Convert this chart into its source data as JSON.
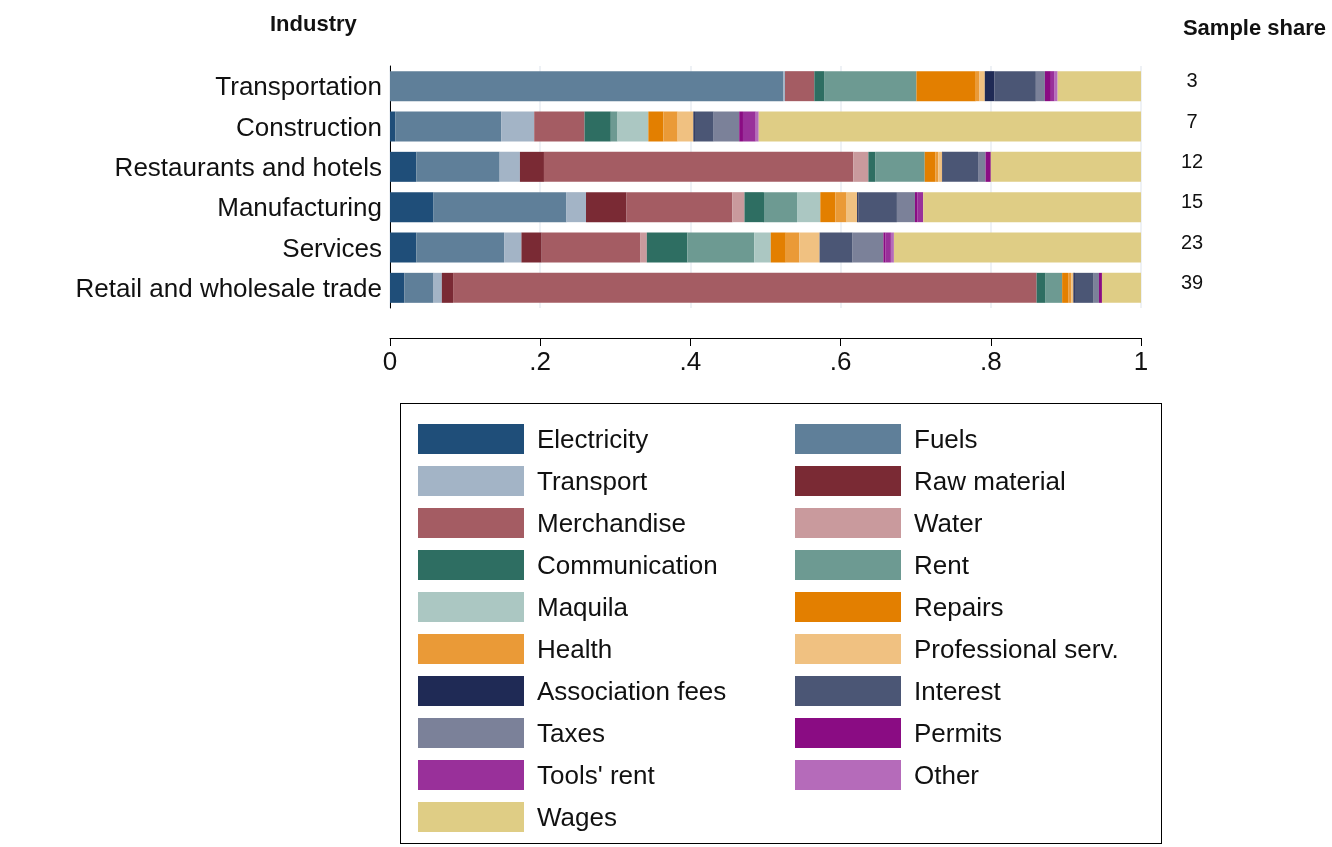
{
  "chart_data": {
    "type": "bar",
    "orientation": "horizontal",
    "stacked": true,
    "ylabel": "Industry",
    "y2label": "Sample share",
    "categories": [
      "Transportation",
      "Construction",
      "Restaurants and hotels",
      "Manufacturing",
      "Services",
      "Retail and wholesale trade"
    ],
    "xlim": [
      0,
      1
    ],
    "xticks": [
      0,
      {
        "value": 0.2,
        "label": ".2"
      },
      {
        "value": 0.4,
        "label": ".4"
      },
      {
        "value": 0.6,
        "label": ".6"
      },
      {
        "value": 0.8,
        "label": ".8"
      },
      1
    ],
    "grid": "x",
    "legend": "bottom",
    "series": [
      {
        "name": "Electricity",
        "color": "#1f4e79",
        "values": [
          0,
          0.007,
          0.035,
          0.058,
          0.035,
          0.019
        ]
      },
      {
        "name": "Fuels",
        "color": "#5f7f99",
        "values": [
          0.524,
          0.141,
          0.111,
          0.177,
          0.117,
          0.039
        ]
      },
      {
        "name": "Transport",
        "color": "#a3b4c6",
        "values": [
          0.002,
          0.044,
          0.027,
          0.026,
          0.023,
          0.011
        ]
      },
      {
        "name": "Raw material",
        "color": "#7a2a34",
        "values": [
          0,
          0,
          0.032,
          0.054,
          0.027,
          0.015
        ]
      },
      {
        "name": "Merchandise",
        "color": "#a45c63",
        "values": [
          0.039,
          0.067,
          0.412,
          0.141,
          0.131,
          0.777
        ]
      },
      {
        "name": "Water",
        "color": "#c99a9d",
        "values": [
          0,
          0,
          0.02,
          0.016,
          0.009,
          0
        ]
      },
      {
        "name": "Communication",
        "color": "#2e6e62",
        "values": [
          0.013,
          0.035,
          0.009,
          0.026,
          0.054,
          0.012
        ]
      },
      {
        "name": "Rent",
        "color": "#6d9a92",
        "values": [
          0.123,
          0.009,
          0.066,
          0.044,
          0.089,
          0.022
        ]
      },
      {
        "name": "Maquila",
        "color": "#abc7c2",
        "values": [
          0,
          0.041,
          0,
          0.031,
          0.022,
          0
        ]
      },
      {
        "name": "Repairs",
        "color": "#e37f00",
        "values": [
          0.079,
          0.02,
          0.014,
          0.02,
          0.02,
          0.008
        ]
      },
      {
        "name": "Health",
        "color": "#ea9a37",
        "values": [
          0.005,
          0.019,
          0.004,
          0.015,
          0.018,
          0.004
        ]
      },
      {
        "name": "Professional serv.",
        "color": "#f0c181",
        "values": [
          0.007,
          0.021,
          0.005,
          0.014,
          0.027,
          0.003
        ]
      },
      {
        "name": "Association fees",
        "color": "#1f2a55",
        "values": [
          0.013,
          0.002,
          0.001,
          0.002,
          0,
          0.002
        ]
      },
      {
        "name": "Interest",
        "color": "#4b5675",
        "values": [
          0.055,
          0.025,
          0.047,
          0.051,
          0.044,
          0.025
        ]
      },
      {
        "name": "Taxes",
        "color": "#7b8199",
        "values": [
          0.012,
          0.034,
          0.01,
          0.024,
          0.041,
          0.007
        ]
      },
      {
        "name": "Permits",
        "color": "#8a0c83",
        "values": [
          0.008,
          0.005,
          0.007,
          0.003,
          0.003,
          0.004
        ]
      },
      {
        "name": "Tools' rent",
        "color": "#99309a",
        "values": [
          0.005,
          0.017,
          0,
          0.008,
          0.007,
          0
        ]
      },
      {
        "name": "Other",
        "color": "#b56bba",
        "values": [
          0.004,
          0.004,
          0,
          0,
          0.004,
          0
        ]
      },
      {
        "name": "Wages",
        "color": "#dfcd85",
        "values": [
          0.111,
          0.509,
          0.2,
          0.29,
          0.329,
          0.052
        ]
      }
    ],
    "annotations": [
      "3",
      "7",
      "12",
      "15",
      "23",
      "39"
    ]
  }
}
